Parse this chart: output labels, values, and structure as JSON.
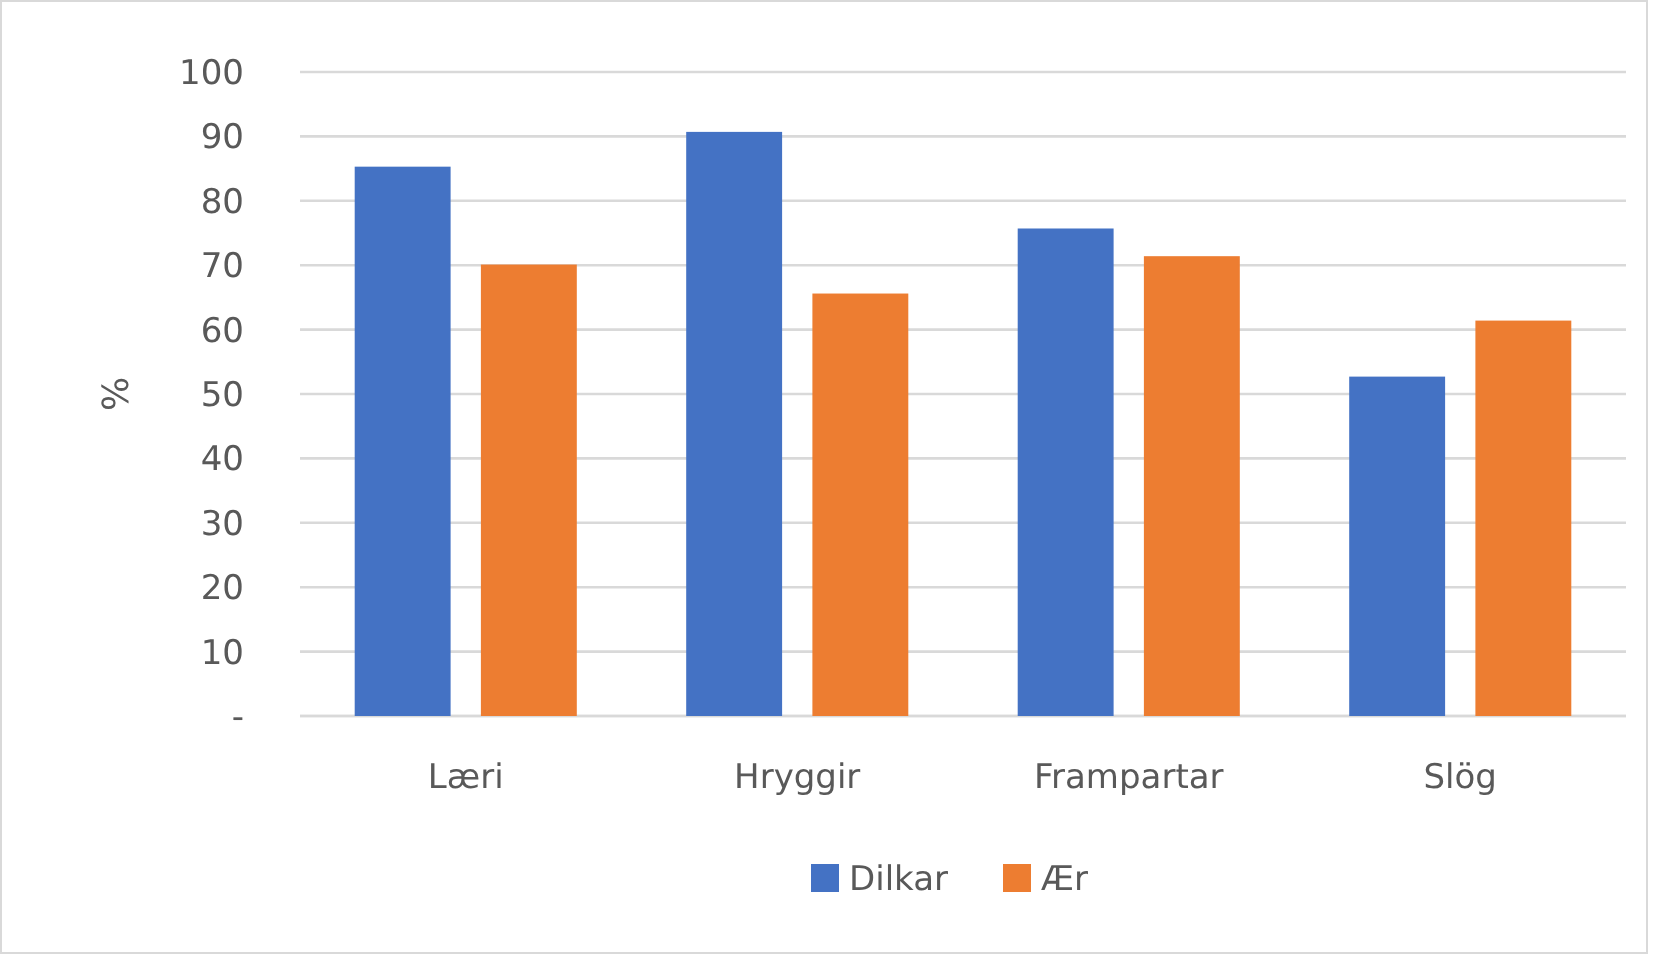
{
  "chart_data": {
    "type": "bar",
    "ylabel": "%",
    "categories": [
      "Læri",
      "Hryggir",
      "Frampartar",
      "Slög"
    ],
    "series": [
      {
        "name": "Dilkar",
        "color": "#4472c4",
        "values": [
          85.3,
          90.7,
          75.7,
          52.7
        ]
      },
      {
        "name": "Ær",
        "color": "#ed7d31",
        "values": [
          70.1,
          65.6,
          71.4,
          61.4
        ]
      }
    ],
    "ylim": [
      0,
      100
    ],
    "yticks": [
      {
        "value": 0,
        "label": "-"
      },
      10,
      20,
      30,
      40,
      50,
      60,
      70,
      80,
      90,
      100
    ],
    "grid": "y",
    "legend": "bottom"
  }
}
